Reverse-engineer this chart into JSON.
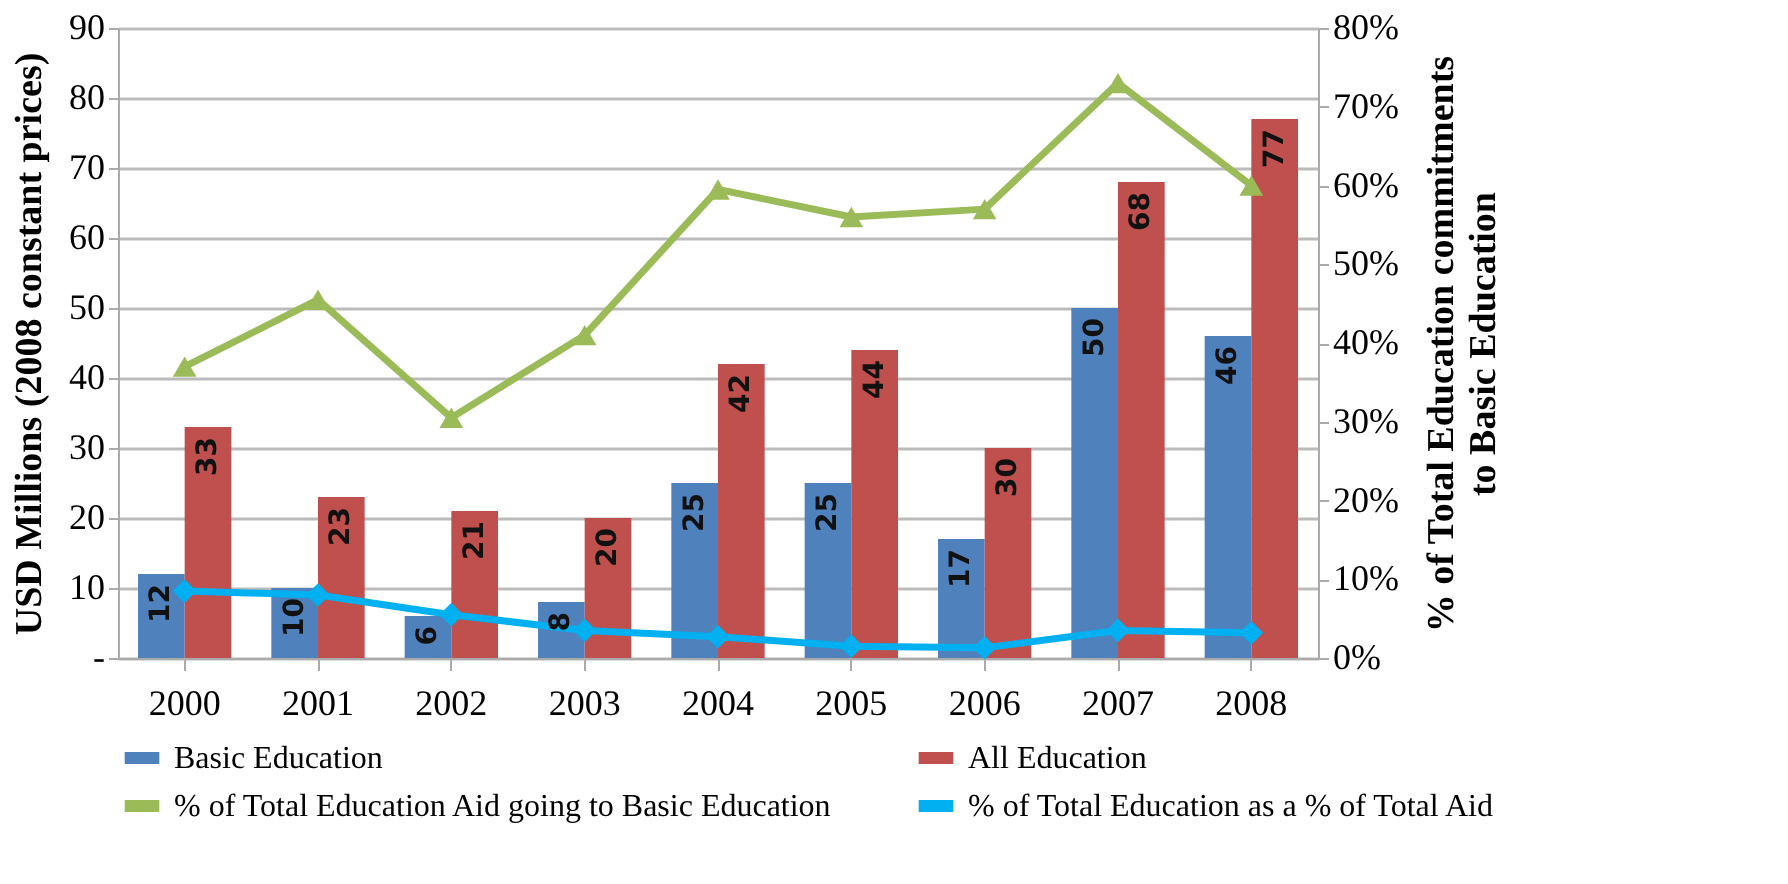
{
  "chart_data": {
    "type": "bar",
    "ylabel": "USD Millions (2008 constant prices)",
    "y2label": "% of Total Education commitments\nto Basic Education",
    "categories": [
      "2000",
      "2001",
      "2002",
      "2003",
      "2004",
      "2005",
      "2006",
      "2007",
      "2008"
    ],
    "series": [
      {
        "name": "Basic Education",
        "color": "#4f81bd",
        "values": [
          12,
          10,
          6,
          8,
          25,
          25,
          17,
          50,
          46
        ],
        "value_labels": [
          "12",
          "10",
          "6",
          "8",
          "25",
          "25",
          "17",
          "50",
          "46"
        ]
      },
      {
        "name": "All Education",
        "color": "#c0504d",
        "values": [
          33,
          23,
          21,
          20,
          42,
          44,
          30,
          68,
          77
        ],
        "value_labels": [
          "33",
          "23",
          "21",
          "20",
          "42",
          "44",
          "30",
          "68",
          "77"
        ]
      },
      {
        "name": "% of Total Education Aid going to Basic Education",
        "type": "line",
        "axis": "y2",
        "marker": "triangle",
        "color": "#9bbb59",
        "values": [
          37,
          45.5,
          30.5,
          41,
          59.5,
          56,
          57,
          73,
          60
        ]
      },
      {
        "name": "% of Total Education as a % of Total Aid",
        "type": "line",
        "axis": "y2",
        "marker": "diamond",
        "color": "#00b0f0",
        "values": [
          8.5,
          8,
          5.5,
          3.5,
          2.7,
          1.5,
          1.3,
          3.5,
          3.2
        ]
      }
    ],
    "ylim": [
      0,
      90
    ],
    "yticks": [
      {
        "value": 0,
        "label": "-"
      },
      10,
      20,
      30,
      40,
      50,
      60,
      70,
      80,
      90
    ],
    "y2lim": [
      0,
      80
    ],
    "y2ticks": [
      {
        "value": 0,
        "label": "0%"
      },
      {
        "value": 10,
        "label": "10%"
      },
      {
        "value": 20,
        "label": "20%"
      },
      {
        "value": 30,
        "label": "30%"
      },
      {
        "value": 40,
        "label": "40%"
      },
      {
        "value": 50,
        "label": "50%"
      },
      {
        "value": 60,
        "label": "60%"
      },
      {
        "value": 70,
        "label": "70%"
      },
      {
        "value": 80,
        "label": "80%"
      }
    ],
    "grid": "y",
    "legend": "bottom"
  }
}
